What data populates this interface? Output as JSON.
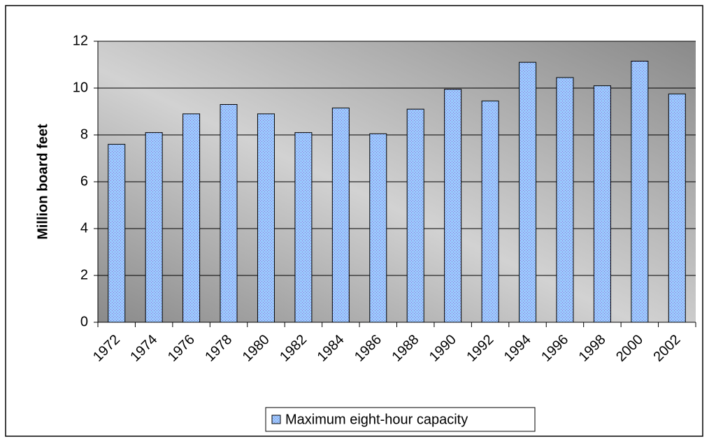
{
  "chart_data": {
    "type": "bar",
    "y_label": "Million board feet",
    "categories": [
      "1972",
      "1974",
      "1976",
      "1978",
      "1980",
      "1982",
      "1984",
      "1986",
      "1988",
      "1990",
      "1992",
      "1994",
      "1996",
      "1998",
      "2000",
      "2002"
    ],
    "series": [
      {
        "name": "Maximum eight-hour capacity",
        "color": "#99ccff",
        "values": [
          7.6,
          8.1,
          8.9,
          9.3,
          8.9,
          8.1,
          9.15,
          8.05,
          9.1,
          9.95,
          9.45,
          11.1,
          10.45,
          10.1,
          11.15,
          9.75
        ]
      }
    ],
    "ylim": [
      0,
      12
    ],
    "yticks": [
      0,
      2,
      4,
      6,
      8,
      10,
      12
    ],
    "grid": true,
    "legend": "bottom"
  }
}
